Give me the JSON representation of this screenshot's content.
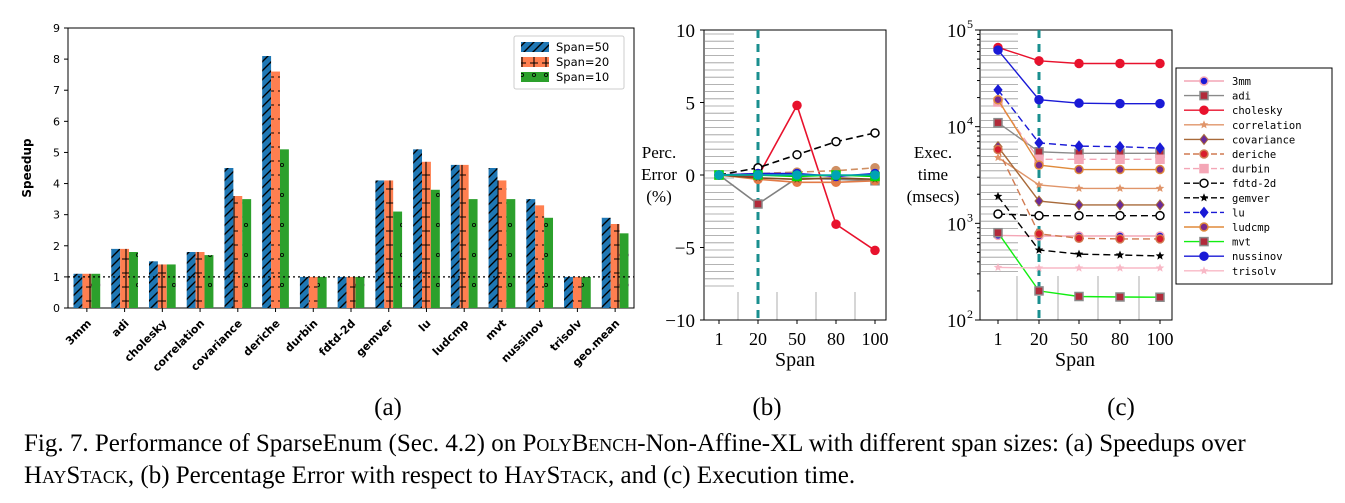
{
  "figure": {
    "caption_fig": "Fig. 7.",
    "caption_part1": "Performance of SparseEnum (Sec. 4.2) on",
    "caption_bench": "PolyBench",
    "caption_part2": "-Non-Affine-XL with different span sizes: (a)",
    "caption_part3": "Speedups over",
    "caption_hay1": "HayStack",
    "caption_part4": ", (b) Percentage Error with respect to",
    "caption_hay2": "HayStack",
    "caption_part5": ", and (c) Execution time.",
    "sublabels": [
      "(a)",
      "(b)",
      "(c)"
    ]
  },
  "chart_data": [
    {
      "type": "bar",
      "ylabel": "Speedup",
      "ylim": [
        0,
        9
      ],
      "yticks": [
        0,
        1,
        2,
        3,
        4,
        5,
        6,
        7,
        8,
        9
      ],
      "reference_line": 1,
      "legend_position": "top-right",
      "categories": [
        "3mm",
        "adi",
        "cholesky",
        "correlation",
        "covariance",
        "deriche",
        "durbin",
        "fdtd-2d",
        "gemver",
        "lu",
        "ludcmp",
        "mvt",
        "nussinov",
        "trisolv",
        "geo.mean"
      ],
      "series": [
        {
          "name": "Span=50",
          "color": "#1f77b4",
          "hatch": "diag",
          "values": [
            1.1,
            1.9,
            1.5,
            1.8,
            4.5,
            8.1,
            1.0,
            1.0,
            4.1,
            5.1,
            4.6,
            4.5,
            3.5,
            1.0,
            2.9
          ]
        },
        {
          "name": "Span=20",
          "color": "#ff7f50",
          "hatch": "vert",
          "values": [
            1.1,
            1.9,
            1.4,
            1.8,
            3.6,
            7.6,
            1.0,
            1.0,
            4.1,
            4.7,
            4.6,
            4.1,
            3.3,
            1.0,
            2.7
          ]
        },
        {
          "name": "Span=10",
          "color": "#2ca02c",
          "hatch": "dots",
          "values": [
            1.1,
            1.8,
            1.4,
            1.7,
            3.5,
            5.1,
            1.0,
            1.0,
            3.1,
            3.8,
            3.5,
            3.5,
            2.9,
            1.0,
            2.4
          ]
        }
      ]
    },
    {
      "type": "line",
      "xlabel": "Span",
      "ylabel_lines": [
        "Perc.",
        "Error",
        "(%)"
      ],
      "ylim": [
        -10,
        10
      ],
      "yticks": [
        -10,
        -5,
        0,
        5,
        10
      ],
      "x": [
        1,
        20,
        50,
        80,
        100
      ],
      "marked_x": 20,
      "series": [
        {
          "color": "#808080",
          "values": [
            0,
            -2.0,
            -0.2,
            -0.3,
            -0.4
          ],
          "marker": "square-red"
        },
        {
          "color": "#e8122d",
          "values": [
            0,
            -0.1,
            4.8,
            -3.4,
            -5.2
          ],
          "marker": "circle"
        },
        {
          "color": "#000000",
          "dash": true,
          "values": [
            0,
            0.5,
            1.4,
            2.3,
            2.9
          ],
          "marker": "circle-open"
        },
        {
          "color": "#e37b47",
          "values": [
            0,
            -0.3,
            -0.5,
            -0.5,
            -0.4
          ],
          "marker": "circle"
        },
        {
          "color": "#cf8f62",
          "dash": true,
          "values": [
            0,
            0.1,
            0.2,
            0.3,
            0.5
          ],
          "marker": "circle"
        },
        {
          "color": "#7b4a22",
          "values": [
            0,
            -0.2,
            -0.3,
            -0.2,
            -0.3
          ],
          "marker": "star"
        },
        {
          "color": "#1a1ad6",
          "values": [
            0,
            0.1,
            0.1,
            -0.1,
            0.1
          ],
          "marker": "circle"
        },
        {
          "color": "#00dd00",
          "values": [
            0,
            0.0,
            -0.1,
            0.0,
            -0.1
          ],
          "marker": "square"
        },
        {
          "color": "#00a3b4",
          "values": [
            0,
            0.0,
            0.0,
            0.0,
            0.0
          ],
          "marker": "circle"
        }
      ]
    },
    {
      "type": "line",
      "scale_y": "log",
      "xlabel": "Span",
      "ylabel_lines": [
        "Exec.",
        "time",
        "(msecs)"
      ],
      "ylim": [
        100,
        100000
      ],
      "yticks": [
        {
          "v": 100,
          "mant": "10",
          "exp": "2"
        },
        {
          "v": 1000,
          "mant": "10",
          "exp": "3"
        },
        {
          "v": 10000,
          "mant": "10",
          "exp": "4"
        },
        {
          "v": 100000,
          "mant": "10",
          "exp": "5"
        }
      ],
      "x": [
        1,
        20,
        50,
        80,
        100
      ],
      "marked_x": 20,
      "legend_position": "right",
      "series": [
        {
          "name": "3mm",
          "color": "#f4a6b6",
          "marker": "circle-blue",
          "values": [
            750,
            740,
            740,
            740,
            740
          ]
        },
        {
          "name": "adi",
          "color": "#8a8a8a",
          "marker": "square-red",
          "values": [
            11000,
            5500,
            5300,
            5300,
            5300
          ]
        },
        {
          "name": "cholesky",
          "color": "#e8122d",
          "marker": "circle",
          "values": [
            66000,
            48000,
            45000,
            45000,
            45000
          ]
        },
        {
          "name": "correlation",
          "color": "#e0956a",
          "marker": "star",
          "values": [
            4800,
            2500,
            2300,
            2300,
            2300
          ]
        },
        {
          "name": "covariance",
          "color": "#a86a3a",
          "marker": "diamond-purple",
          "values": [
            6200,
            1700,
            1550,
            1550,
            1550
          ]
        },
        {
          "name": "deriche",
          "color": "#d07a50",
          "dash": true,
          "marker": "circle-red",
          "values": [
            5800,
            780,
            700,
            690,
            690
          ]
        },
        {
          "name": "durbin",
          "color": "#f4a6b6",
          "dash": true,
          "marker": "square",
          "values": [
            18000,
            4600,
            4600,
            4600,
            4600
          ]
        },
        {
          "name": "fdtd-2d",
          "color": "#000000",
          "dash": true,
          "marker": "circle-open",
          "values": [
            1250,
            1200,
            1200,
            1200,
            1200
          ]
        },
        {
          "name": "gemver",
          "color": "#000000",
          "dash": true,
          "marker": "star",
          "values": [
            1900,
            530,
            480,
            470,
            460
          ]
        },
        {
          "name": "lu",
          "color": "#1a1ad6",
          "dash": true,
          "marker": "diamond",
          "values": [
            24000,
            6800,
            6300,
            6200,
            6000
          ]
        },
        {
          "name": "ludcmp",
          "color": "#e08a3a",
          "marker": "circle-purple",
          "values": [
            19000,
            4000,
            3600,
            3600,
            3600
          ]
        },
        {
          "name": "mvt",
          "color": "#11ee11",
          "marker": "square-red",
          "values": [
            800,
            200,
            175,
            173,
            172
          ]
        },
        {
          "name": "nussinov",
          "color": "#1a1ad6",
          "marker": "circle",
          "values": [
            62000,
            19000,
            17500,
            17300,
            17300
          ]
        },
        {
          "name": "trisolv",
          "color": "#f8b8c6",
          "marker": "star",
          "values": [
            350,
            345,
            345,
            345,
            345
          ]
        }
      ]
    }
  ]
}
